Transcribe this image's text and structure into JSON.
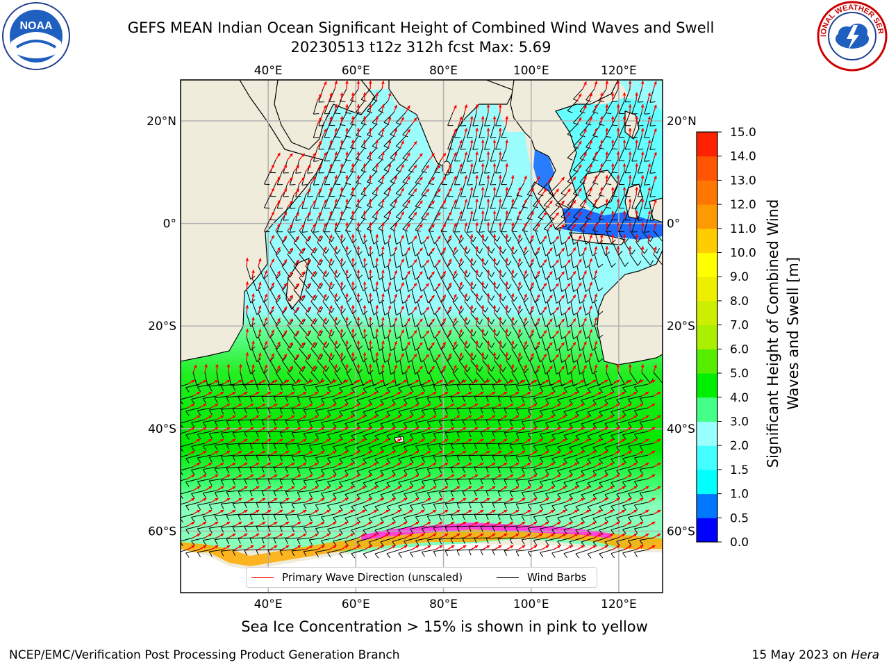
{
  "title": {
    "line1": "GEFS MEAN Indian Ocean Significant Height of Combined Wind Waves and Swell",
    "line2": "20230513 t12z 312h fcst   Max: 5.69"
  },
  "logos": {
    "left": {
      "name": "noaa-logo",
      "text": "NOAA"
    },
    "right": {
      "name": "nws-logo",
      "text": "NATIONAL WEATHER SERVICE"
    }
  },
  "map": {
    "lon_ticks": [
      "40°E",
      "60°E",
      "80°E",
      "100°E",
      "120°E"
    ],
    "lat_ticks": [
      "20°N",
      "0°",
      "20°S",
      "40°S",
      "60°S"
    ],
    "lon_values": [
      40,
      60,
      80,
      100,
      120
    ],
    "lat_values": [
      20,
      0,
      -20,
      -40,
      -60
    ],
    "extent": {
      "lon_min": 20,
      "lon_max": 130,
      "lat_min": -72,
      "lat_max": 28
    },
    "land_color": "#efecdc",
    "ocean_color": "#9bfcfc"
  },
  "colorbar": {
    "label": "Significant Height of Combined Wind Waves and Swell [m]",
    "ticks": [
      "0.0",
      "0.5",
      "1.0",
      "1.5",
      "2.0",
      "3.0",
      "4.0",
      "5.0",
      "6.0",
      "7.0",
      "8.0",
      "9.0",
      "10.0",
      "11.0",
      "12.0",
      "13.0",
      "14.0",
      "15.0"
    ],
    "colors": [
      "#0000ff",
      "#0077ff",
      "#00ffff",
      "#44ffff",
      "#99ffff",
      "#44ff88",
      "#00ee00",
      "#55ee00",
      "#aaee00",
      "#ccee00",
      "#eeee00",
      "#ffff00",
      "#ffcc00",
      "#ff9900",
      "#ff7700",
      "#ff5500",
      "#ff2200"
    ]
  },
  "legend": {
    "wave": {
      "label": "Primary Wave Direction (unscaled)",
      "color": "#ff0000"
    },
    "wind": {
      "label": "Wind Barbs",
      "color": "#000000"
    }
  },
  "footer": {
    "note": "Sea Ice Concentration > 15% is shown in pink to yellow",
    "left": "NCEP/EMC/Verification Post Processing Product Generation Branch",
    "right_date": "15 May 2023 on",
    "right_host": "Hera"
  }
}
